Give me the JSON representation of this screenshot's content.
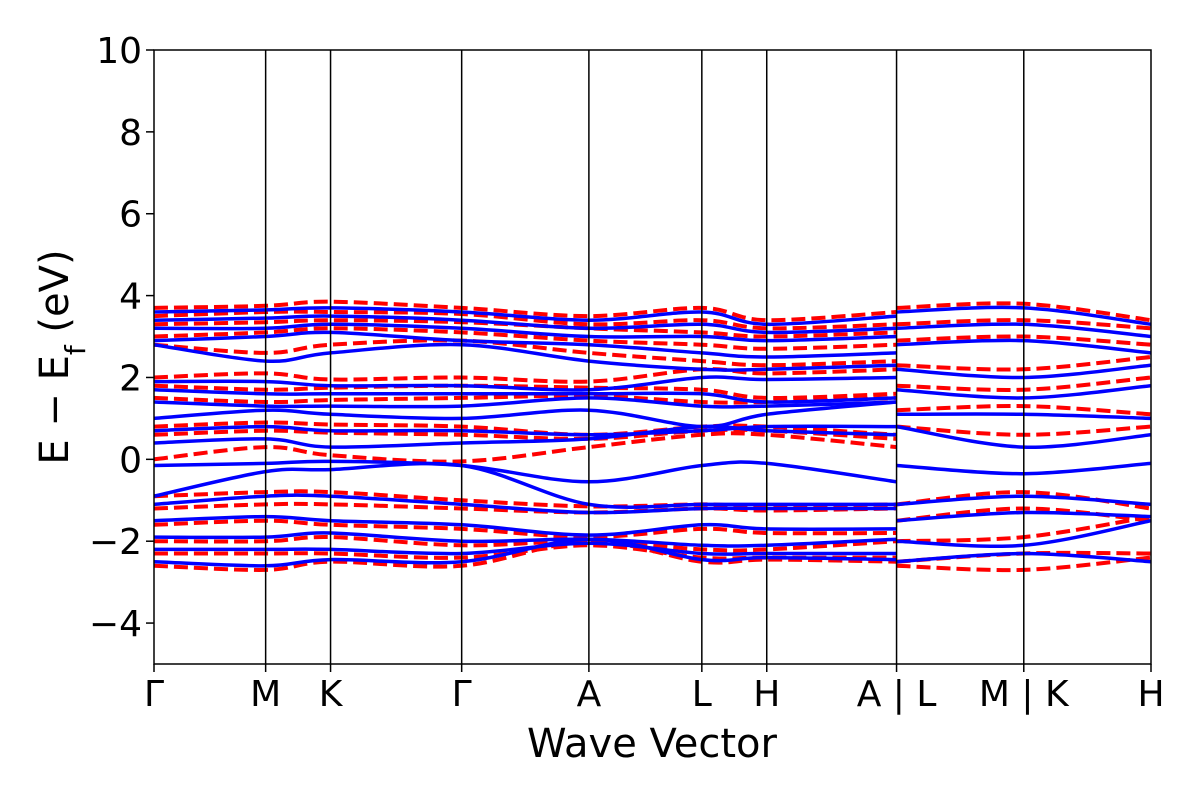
{
  "chart_data": {
    "type": "line",
    "title": "",
    "xlabel": "Wave Vector",
    "ylabel": "E − E",
    "ylabel_subscript": "f",
    "ylabel_unit": " (eV)",
    "ylim": [
      -5,
      10
    ],
    "yticks": [
      -4,
      -2,
      0,
      2,
      4,
      6,
      8,
      10
    ],
    "ytick_labels": [
      "−4",
      "−2",
      "0",
      "2",
      "4",
      "6",
      "8",
      "10"
    ],
    "xlim": [
      0,
      7.68
    ],
    "kpoints": [
      {
        "x": 0.0,
        "label": "Γ"
      },
      {
        "x": 0.86,
        "label": "M"
      },
      {
        "x": 1.36,
        "label": "K"
      },
      {
        "x": 2.37,
        "label": "Γ"
      },
      {
        "x": 3.35,
        "label": "A"
      },
      {
        "x": 4.22,
        "label": "L"
      },
      {
        "x": 4.72,
        "label": "H"
      },
      {
        "x": 5.72,
        "label": "A | L"
      },
      {
        "x": 6.7,
        "label": "M | K"
      },
      {
        "x": 7.68,
        "label": "H"
      }
    ],
    "colors": {
      "solid": "#0000ff",
      "dashed": "#ff0000"
    },
    "legend": "none",
    "series": [
      {
        "style": "dashed",
        "x": [
          0,
          0.86,
          1.36,
          2.37,
          3.35,
          4.22,
          4.72,
          5.72
        ],
        "y": [
          3.7,
          3.75,
          3.85,
          3.7,
          3.5,
          3.7,
          3.4,
          3.6
        ]
      },
      {
        "style": "dashed",
        "x": [
          0,
          0.86,
          1.36,
          2.37,
          3.35,
          4.22,
          4.72,
          5.72
        ],
        "y": [
          3.5,
          3.6,
          3.6,
          3.55,
          3.3,
          3.4,
          3.2,
          3.3
        ]
      },
      {
        "style": "dashed",
        "x": [
          0,
          0.86,
          1.36,
          2.37,
          3.35,
          4.22,
          4.72,
          5.72
        ],
        "y": [
          3.3,
          3.35,
          3.4,
          3.35,
          3.2,
          3.1,
          3.0,
          3.1
        ]
      },
      {
        "style": "dashed",
        "x": [
          0,
          0.86,
          1.36,
          2.37,
          3.35,
          4.22,
          4.72,
          5.72
        ],
        "y": [
          3.0,
          3.1,
          3.2,
          3.1,
          2.9,
          2.8,
          2.7,
          2.8
        ]
      },
      {
        "style": "dashed",
        "x": [
          0,
          0.86,
          1.36,
          2.37,
          3.35,
          4.22,
          4.72,
          5.72
        ],
        "y": [
          2.8,
          2.6,
          2.8,
          2.9,
          2.6,
          2.4,
          2.3,
          2.4
        ]
      },
      {
        "style": "dashed",
        "x": [
          0,
          0.86,
          1.36,
          2.37,
          3.35,
          4.22,
          4.72,
          5.72
        ],
        "y": [
          2.0,
          2.1,
          1.95,
          2.0,
          1.9,
          2.2,
          2.1,
          2.2
        ]
      },
      {
        "style": "dashed",
        "x": [
          0,
          0.86,
          1.36,
          2.37,
          3.35,
          4.22,
          4.72,
          5.72
        ],
        "y": [
          1.8,
          1.7,
          1.75,
          1.8,
          1.75,
          1.7,
          1.5,
          1.6
        ]
      },
      {
        "style": "dashed",
        "x": [
          0,
          0.86,
          1.36,
          2.37,
          3.35,
          4.22,
          4.72,
          5.72
        ],
        "y": [
          1.5,
          1.4,
          1.45,
          1.5,
          1.55,
          1.4,
          1.4,
          1.5
        ]
      },
      {
        "style": "dashed",
        "x": [
          0,
          0.86,
          1.36,
          2.37,
          3.35,
          4.22,
          4.72,
          5.72
        ],
        "y": [
          0.8,
          0.9,
          0.85,
          0.8,
          0.6,
          0.8,
          0.8,
          0.6
        ]
      },
      {
        "style": "dashed",
        "x": [
          0,
          0.86,
          1.36,
          2.37,
          3.35,
          4.22,
          4.72,
          5.72
        ],
        "y": [
          0.6,
          0.7,
          0.65,
          0.6,
          0.5,
          0.7,
          0.7,
          0.5
        ]
      },
      {
        "style": "dashed",
        "x": [
          0,
          0.86,
          1.36,
          2.37,
          3.35,
          4.22,
          4.72,
          5.72
        ],
        "y": [
          0.0,
          0.3,
          0.1,
          -0.05,
          0.3,
          0.6,
          0.6,
          0.3
        ]
      },
      {
        "style": "dashed",
        "x": [
          0,
          0.86,
          1.36,
          2.37,
          3.35,
          4.22,
          4.72,
          5.72
        ],
        "y": [
          -0.9,
          -0.8,
          -0.8,
          -1.0,
          -1.15,
          -1.1,
          -1.15,
          -1.1
        ]
      },
      {
        "style": "dashed",
        "x": [
          0,
          0.86,
          1.36,
          2.37,
          3.35,
          4.22,
          4.72,
          5.72
        ],
        "y": [
          -1.2,
          -1.1,
          -1.1,
          -1.2,
          -1.3,
          -1.2,
          -1.25,
          -1.2
        ]
      },
      {
        "style": "dashed",
        "x": [
          0,
          0.86,
          1.36,
          2.37,
          3.35,
          4.22,
          4.72,
          5.72
        ],
        "y": [
          -1.6,
          -1.5,
          -1.6,
          -1.7,
          -1.9,
          -1.7,
          -1.8,
          -1.8
        ]
      },
      {
        "style": "dashed",
        "x": [
          0,
          0.86,
          1.36,
          2.37,
          3.35,
          4.22,
          4.72,
          5.72
        ],
        "y": [
          -2.0,
          -2.0,
          -1.9,
          -2.1,
          -2.0,
          -2.2,
          -2.2,
          -2.0
        ]
      },
      {
        "style": "dashed",
        "x": [
          0,
          0.86,
          1.36,
          2.37,
          3.35,
          4.22,
          4.72,
          5.72
        ],
        "y": [
          -2.3,
          -2.3,
          -2.3,
          -2.4,
          -2.1,
          -2.4,
          -2.4,
          -2.4
        ]
      },
      {
        "style": "dashed",
        "x": [
          0,
          0.86,
          1.36,
          2.37,
          3.35,
          4.22,
          4.72,
          5.72
        ],
        "y": [
          -2.6,
          -2.7,
          -2.5,
          -2.6,
          -2.0,
          -2.5,
          -2.45,
          -2.5
        ]
      },
      {
        "style": "dashed",
        "x": [
          5.72,
          6.7,
          7.68
        ],
        "y": [
          3.7,
          3.8,
          3.4
        ]
      },
      {
        "style": "dashed",
        "x": [
          5.72,
          6.7,
          7.68
        ],
        "y": [
          3.3,
          3.4,
          3.2
        ]
      },
      {
        "style": "dashed",
        "x": [
          5.72,
          6.7,
          7.68
        ],
        "y": [
          2.9,
          3.0,
          2.8
        ]
      },
      {
        "style": "dashed",
        "x": [
          5.72,
          6.7,
          7.68
        ],
        "y": [
          2.3,
          2.2,
          2.5
        ]
      },
      {
        "style": "dashed",
        "x": [
          5.72,
          6.7,
          7.68
        ],
        "y": [
          1.8,
          1.7,
          2.0
        ]
      },
      {
        "style": "dashed",
        "x": [
          5.72,
          6.7,
          7.68
        ],
        "y": [
          1.2,
          1.3,
          1.1
        ]
      },
      {
        "style": "dashed",
        "x": [
          5.72,
          6.7,
          7.68
        ],
        "y": [
          0.8,
          0.6,
          0.8
        ]
      },
      {
        "style": "dashed",
        "x": [
          5.72,
          6.7,
          7.68
        ],
        "y": [
          -1.1,
          -0.8,
          -1.2
        ]
      },
      {
        "style": "dashed",
        "x": [
          5.72,
          6.7,
          7.68
        ],
        "y": [
          -1.5,
          -1.2,
          -1.5
        ]
      },
      {
        "style": "dashed",
        "x": [
          5.72,
          6.7,
          7.68
        ],
        "y": [
          -2.0,
          -1.9,
          -1.4
        ]
      },
      {
        "style": "dashed",
        "x": [
          5.72,
          6.7,
          7.68
        ],
        "y": [
          -2.5,
          -2.3,
          -2.3
        ]
      },
      {
        "style": "dashed",
        "x": [
          5.72,
          6.7,
          7.68
        ],
        "y": [
          -2.6,
          -2.7,
          -2.4
        ]
      },
      {
        "style": "solid",
        "x": [
          0,
          0.86,
          1.36,
          2.37,
          3.35,
          4.22,
          4.72,
          5.72
        ],
        "y": [
          3.6,
          3.65,
          3.7,
          3.6,
          3.4,
          3.6,
          3.3,
          3.5
        ]
      },
      {
        "style": "solid",
        "x": [
          0,
          0.86,
          1.36,
          2.37,
          3.35,
          4.22,
          4.72,
          5.72
        ],
        "y": [
          3.4,
          3.45,
          3.5,
          3.4,
          3.2,
          3.3,
          3.1,
          3.2
        ]
      },
      {
        "style": "solid",
        "x": [
          0,
          0.86,
          1.36,
          2.37,
          3.35,
          4.22,
          4.72,
          5.72
        ],
        "y": [
          3.2,
          3.2,
          3.3,
          3.2,
          3.0,
          3.0,
          2.9,
          3.0
        ]
      },
      {
        "style": "solid",
        "x": [
          0,
          0.86,
          1.36,
          2.37,
          3.35,
          4.22,
          4.72,
          5.72
        ],
        "y": [
          2.9,
          3.0,
          3.1,
          2.9,
          2.8,
          2.6,
          2.5,
          2.6
        ]
      },
      {
        "style": "solid",
        "x": [
          0,
          0.86,
          1.36,
          2.37,
          3.35,
          4.22,
          4.72,
          5.72
        ],
        "y": [
          2.8,
          2.4,
          2.6,
          2.8,
          2.4,
          2.2,
          2.2,
          2.3
        ]
      },
      {
        "style": "solid",
        "x": [
          0,
          0.86,
          1.36,
          2.37,
          3.35,
          4.22,
          4.72,
          5.72
        ],
        "y": [
          1.9,
          1.9,
          1.8,
          1.8,
          1.7,
          2.0,
          1.95,
          2.0
        ]
      },
      {
        "style": "solid",
        "x": [
          0,
          0.86,
          1.36,
          2.37,
          3.35,
          4.22,
          4.72,
          5.72
        ],
        "y": [
          1.7,
          1.6,
          1.6,
          1.6,
          1.6,
          1.6,
          1.4,
          1.5
        ]
      },
      {
        "style": "solid",
        "x": [
          0,
          0.86,
          1.36,
          2.37,
          3.35,
          4.22,
          4.72,
          5.72
        ],
        "y": [
          1.4,
          1.3,
          1.3,
          1.3,
          1.5,
          1.3,
          1.3,
          1.4
        ]
      },
      {
        "style": "solid",
        "x": [
          0,
          0.86,
          1.36,
          2.37,
          3.35,
          4.22,
          4.72,
          5.72
        ],
        "y": [
          1.0,
          1.2,
          1.1,
          1.0,
          1.2,
          0.8,
          1.1,
          1.4
        ]
      },
      {
        "style": "solid",
        "x": [
          0,
          0.86,
          1.36,
          2.37,
          3.35,
          4.22,
          4.72,
          5.72
        ],
        "y": [
          0.7,
          0.8,
          0.7,
          0.7,
          0.6,
          0.7,
          0.8,
          0.8
        ]
      },
      {
        "style": "solid",
        "x": [
          0,
          0.86,
          1.36,
          2.37,
          3.35,
          4.22,
          4.72,
          5.72
        ],
        "y": [
          0.4,
          0.5,
          0.3,
          0.4,
          0.5,
          0.8,
          0.7,
          0.6
        ]
      },
      {
        "style": "solid",
        "x": [
          0,
          0.86,
          1.36,
          2.37,
          3.35,
          4.22,
          4.72,
          5.72
        ],
        "y": [
          -0.15,
          -0.1,
          -0.05,
          -0.15,
          -0.55,
          -0.15,
          -0.1,
          -0.55
        ]
      },
      {
        "style": "solid",
        "x": [
          0,
          0.86,
          1.36,
          2.37,
          3.35,
          4.22,
          4.72,
          5.72
        ],
        "y": [
          -0.9,
          -0.3,
          -0.25,
          -0.15,
          -1.1,
          -1.1,
          -1.1,
          -1.1
        ]
      },
      {
        "style": "solid",
        "x": [
          0,
          0.86,
          1.36,
          2.37,
          3.35,
          4.22,
          4.72,
          5.72
        ],
        "y": [
          -1.1,
          -0.9,
          -0.9,
          -1.1,
          -1.3,
          -1.2,
          -1.2,
          -1.2
        ]
      },
      {
        "style": "solid",
        "x": [
          0,
          0.86,
          1.36,
          2.37,
          3.35,
          4.22,
          4.72,
          5.72
        ],
        "y": [
          -1.5,
          -1.4,
          -1.5,
          -1.6,
          -1.85,
          -1.6,
          -1.7,
          -1.7
        ]
      },
      {
        "style": "solid",
        "x": [
          0,
          0.86,
          1.36,
          2.37,
          3.35,
          4.22,
          4.72,
          5.72
        ],
        "y": [
          -1.9,
          -1.9,
          -1.8,
          -2.0,
          -1.95,
          -2.1,
          -2.1,
          -1.95
        ]
      },
      {
        "style": "solid",
        "x": [
          0,
          0.86,
          1.36,
          2.37,
          3.35,
          4.22,
          4.72,
          5.72
        ],
        "y": [
          -2.2,
          -2.2,
          -2.2,
          -2.3,
          -2.05,
          -2.3,
          -2.3,
          -2.3
        ]
      },
      {
        "style": "solid",
        "x": [
          0,
          0.86,
          1.36,
          2.37,
          3.35,
          4.22,
          4.72,
          5.72
        ],
        "y": [
          -2.5,
          -2.6,
          -2.45,
          -2.5,
          -1.95,
          -2.45,
          -2.4,
          -2.45
        ]
      },
      {
        "style": "solid",
        "x": [
          5.72,
          6.7,
          7.68
        ],
        "y": [
          3.6,
          3.7,
          3.3
        ]
      },
      {
        "style": "solid",
        "x": [
          5.72,
          6.7,
          7.68
        ],
        "y": [
          3.2,
          3.3,
          3.0
        ]
      },
      {
        "style": "solid",
        "x": [
          5.72,
          6.7,
          7.68
        ],
        "y": [
          2.8,
          2.9,
          2.6
        ]
      },
      {
        "style": "solid",
        "x": [
          5.72,
          6.7,
          7.68
        ],
        "y": [
          2.2,
          2.0,
          2.3
        ]
      },
      {
        "style": "solid",
        "x": [
          5.72,
          6.7,
          7.68
        ],
        "y": [
          1.7,
          1.5,
          1.8
        ]
      },
      {
        "style": "solid",
        "x": [
          5.72,
          6.7,
          7.68
        ],
        "y": [
          1.1,
          1.1,
          1.0
        ]
      },
      {
        "style": "solid",
        "x": [
          5.72,
          6.7,
          7.68
        ],
        "y": [
          0.8,
          0.3,
          0.6
        ]
      },
      {
        "style": "solid",
        "x": [
          5.72,
          6.7,
          7.68
        ],
        "y": [
          -0.15,
          -0.35,
          -0.1
        ]
      },
      {
        "style": "solid",
        "x": [
          5.72,
          6.7,
          7.68
        ],
        "y": [
          -1.1,
          -0.9,
          -1.1
        ]
      },
      {
        "style": "solid",
        "x": [
          5.72,
          6.7,
          7.68
        ],
        "y": [
          -1.5,
          -1.3,
          -1.4
        ]
      },
      {
        "style": "solid",
        "x": [
          5.72,
          6.7,
          7.68
        ],
        "y": [
          -2.0,
          -2.1,
          -1.5
        ]
      },
      {
        "style": "solid",
        "x": [
          5.72,
          6.7,
          7.68
        ],
        "y": [
          -2.5,
          -2.3,
          -2.5
        ]
      }
    ]
  }
}
